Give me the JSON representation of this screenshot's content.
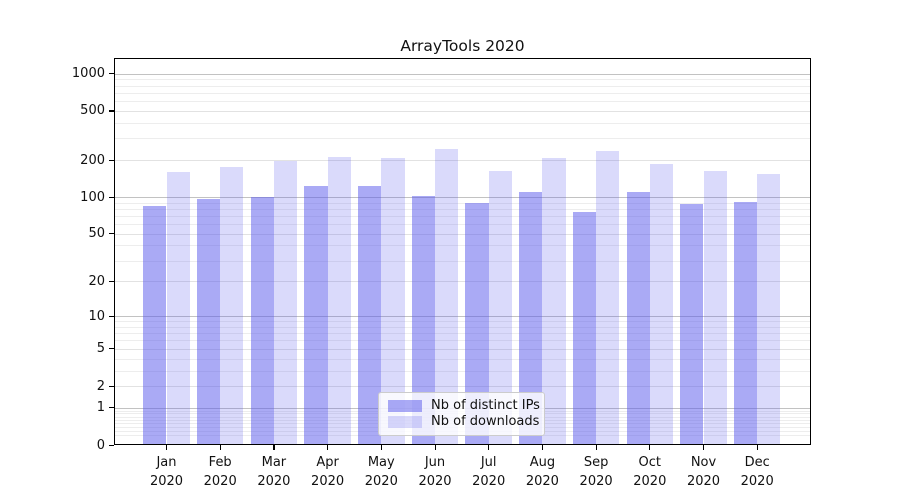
{
  "title": "ArrayTools 2020",
  "colors": {
    "ips_bar": "rgba(85,85,235,0.50)",
    "downloads_bar": "rgba(85,85,235,0.22)",
    "grid_decade": "#c2c2c2",
    "grid_labeled": "#e2e2e2",
    "grid_minor": "#ededed",
    "axis": "#000000",
    "text": "#111111",
    "legend_border": "#cccccc"
  },
  "legend": {
    "items": [
      {
        "label": "Nb of distinct IPs",
        "series": "ips"
      },
      {
        "label": "Nb of downloads",
        "series": "downloads"
      }
    ]
  },
  "chart_data": {
    "type": "bar",
    "title": "ArrayTools 2020",
    "scale": "log1p",
    "grid": true,
    "legend_position": "lower center",
    "categories": [
      "Jan 2020",
      "Feb 2020",
      "Mar 2020",
      "Apr 2020",
      "May 2020",
      "Jun 2020",
      "Jul 2020",
      "Aug 2020",
      "Sep 2020",
      "Oct 2020",
      "Nov 2020",
      "Dec 2020"
    ],
    "series": [
      {
        "name": "Nb of distinct IPs",
        "values": [
          85,
          96,
          100,
          122,
          122,
          102,
          90,
          109,
          75,
          110,
          87,
          91
        ]
      },
      {
        "name": "Nb of downloads",
        "values": [
          159,
          177,
          195,
          210,
          208,
          245,
          164,
          209,
          236,
          186,
          163,
          154
        ]
      }
    ],
    "y_ticks": [
      0,
      1,
      2,
      5,
      10,
      20,
      50,
      100,
      200,
      500,
      1000
    ],
    "y_tick_labels": [
      "0",
      "1",
      "2",
      "5",
      "10",
      "20",
      "50",
      "100",
      "200",
      "500",
      "1000"
    ],
    "ylim": [
      0,
      1340
    ]
  }
}
